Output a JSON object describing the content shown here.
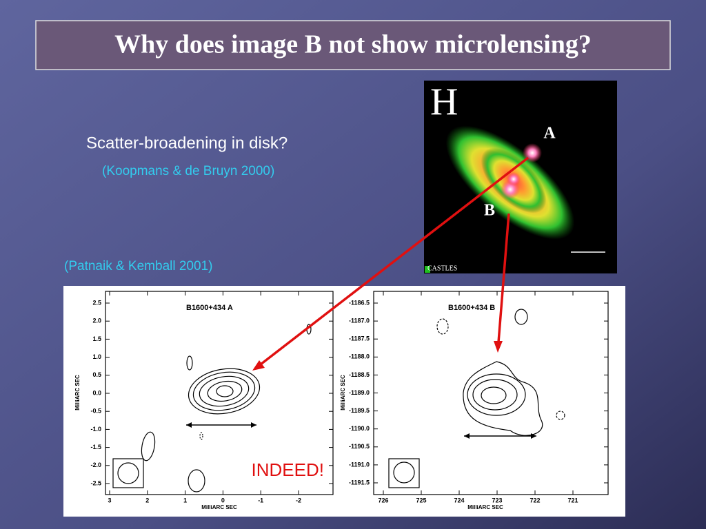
{
  "title": "Why does image B not show microlensing?",
  "bullets": [
    "Scatter-broadening in disk?",
    "(Koopmans & de Bruyn 2000)"
  ],
  "citation": "(Patnaik & Kemball 2001)",
  "image": {
    "label": "H",
    "markers": [
      "A",
      "B"
    ],
    "credit": "CASTLES"
  },
  "plots": [
    {
      "title": "B1600+434 A",
      "y_axis_label": "MilliARC SEC",
      "x_axis_label": "MilliARC SEC",
      "yticks": [
        "2.5",
        "2.0",
        "1.5",
        "1.0",
        "0.5",
        "0.0",
        "-0.5",
        "-1.0",
        "-1.5",
        "-2.0",
        "-2.5"
      ],
      "xticks": [
        "3",
        "2",
        "1",
        "0",
        "-1",
        "-2"
      ]
    },
    {
      "title": "B1600+434 B",
      "y_axis_label": "MilliARC SEC",
      "x_axis_label": "MilliARC SEC",
      "yticks": [
        "-1186.5",
        "-1187.0",
        "-1187.5",
        "-1188.0",
        "-1188.5",
        "-1189.0",
        "-1189.5",
        "-1190.0",
        "-1190.5",
        "-1191.0",
        "-1191.5"
      ],
      "xticks": [
        "726",
        "725",
        "724",
        "723",
        "722",
        "721"
      ]
    }
  ],
  "annotation": "INDEED!"
}
